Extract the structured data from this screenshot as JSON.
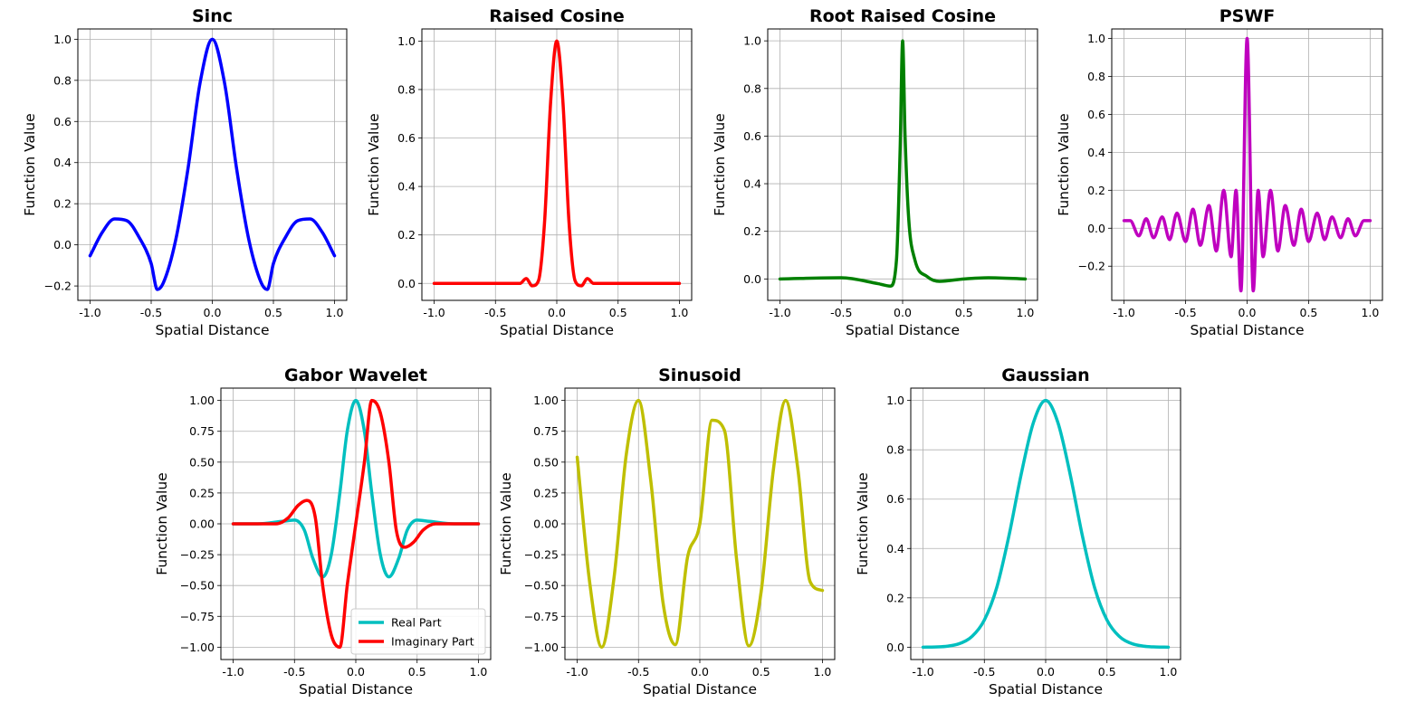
{
  "chart_data": [
    {
      "type": "line",
      "title": "Sinc",
      "xlabel": "Spatial Distance",
      "ylabel": "Function Value",
      "xlim": [
        -1.1,
        1.1
      ],
      "ylim": [
        -0.27,
        1.05
      ],
      "xticks": [
        -1.0,
        -0.5,
        0.0,
        0.5,
        1.0
      ],
      "xtick_labels": [
        "-1.0",
        "-0.5",
        "0.0",
        "0.5",
        "1.0"
      ],
      "yticks": [
        -0.2,
        0.0,
        0.2,
        0.4,
        0.6,
        0.8,
        1.0
      ],
      "ytick_labels": [
        "−0.2",
        "0.0",
        "0.2",
        "0.4",
        "0.6",
        "0.8",
        "1.0"
      ],
      "grid": true,
      "series": [
        {
          "name": "Sinc",
          "color": "#0000ff",
          "x": [
            -1.0,
            -0.9,
            -0.8,
            -0.7,
            -0.6,
            -0.5,
            -0.45,
            -0.4,
            -0.3,
            -0.2,
            -0.1,
            0.0,
            0.1,
            0.2,
            0.3,
            0.4,
            0.45,
            0.5,
            0.6,
            0.7,
            0.8,
            0.9,
            1.0
          ],
          "y": [
            -0.053,
            0.061,
            0.126,
            0.118,
            0.038,
            -0.091,
            -0.217,
            -0.184,
            0.022,
            0.366,
            0.788,
            1.0,
            0.788,
            0.366,
            0.022,
            -0.184,
            -0.217,
            -0.091,
            0.038,
            0.118,
            0.126,
            0.061,
            -0.053
          ]
        }
      ]
    },
    {
      "type": "line",
      "title": "Raised Cosine",
      "xlabel": "Spatial Distance",
      "ylabel": "Function Value",
      "xlim": [
        -1.1,
        1.1
      ],
      "ylim": [
        -0.07,
        1.05
      ],
      "xticks": [
        -1.0,
        -0.5,
        0.0,
        0.5,
        1.0
      ],
      "xtick_labels": [
        "-1.0",
        "-0.5",
        "0.0",
        "0.5",
        "1.0"
      ],
      "yticks": [
        0.0,
        0.2,
        0.4,
        0.6,
        0.8,
        1.0
      ],
      "ytick_labels": [
        "0.0",
        "0.2",
        "0.4",
        "0.6",
        "0.8",
        "1.0"
      ],
      "grid": true,
      "series": [
        {
          "name": "Raised Cosine",
          "color": "#ff0000",
          "x": [
            -1.0,
            -0.5,
            -0.3,
            -0.25,
            -0.2,
            -0.15,
            -0.1,
            -0.05,
            0.0,
            0.05,
            0.1,
            0.15,
            0.2,
            0.25,
            0.3,
            0.5,
            1.0
          ],
          "y": [
            0.0,
            0.0,
            0.0,
            0.02,
            -0.01,
            0.01,
            0.25,
            0.75,
            1.0,
            0.75,
            0.25,
            0.01,
            -0.01,
            0.02,
            0.0,
            0.0,
            0.0
          ]
        }
      ]
    },
    {
      "type": "line",
      "title": "Root Raised Cosine",
      "xlabel": "Spatial Distance",
      "ylabel": "Function Value",
      "xlim": [
        -1.1,
        1.1
      ],
      "ylim": [
        -0.09,
        1.05
      ],
      "xticks": [
        -1.0,
        -0.5,
        0.0,
        0.5,
        1.0
      ],
      "xtick_labels": [
        "-1.0",
        "-0.5",
        "0.0",
        "0.5",
        "1.0"
      ],
      "yticks": [
        0.0,
        0.2,
        0.4,
        0.6,
        0.8,
        1.0
      ],
      "ytick_labels": [
        "0.0",
        "0.2",
        "0.4",
        "0.6",
        "0.8",
        "1.0"
      ],
      "grid": true,
      "series": [
        {
          "name": "Root Raised Cosine",
          "color": "#008000",
          "x": [
            -1.0,
            -0.5,
            -0.2,
            -0.1,
            -0.05,
            -0.02,
            0.0,
            0.02,
            0.05,
            0.1,
            0.2,
            0.3,
            0.5,
            0.7,
            1.0
          ],
          "y": [
            0.0,
            0.005,
            -0.02,
            -0.03,
            0.08,
            0.55,
            1.0,
            0.6,
            0.25,
            0.08,
            0.01,
            -0.01,
            0.0,
            0.005,
            0.0
          ]
        }
      ]
    },
    {
      "type": "line",
      "title": "PSWF",
      "xlabel": "Spatial Distance",
      "ylabel": "Function Value",
      "xlim": [
        -1.1,
        1.1
      ],
      "ylim": [
        -0.38,
        1.05
      ],
      "xticks": [
        -1.0,
        -0.5,
        0.0,
        0.5,
        1.0
      ],
      "xtick_labels": [
        "-1.0",
        "-0.5",
        "0.0",
        "0.5",
        "1.0"
      ],
      "yticks": [
        -0.2,
        0.0,
        0.2,
        0.4,
        0.6,
        0.8,
        1.0
      ],
      "ytick_labels": [
        "−0.2",
        "0.0",
        "0.2",
        "0.4",
        "0.6",
        "0.8",
        "1.0"
      ],
      "grid": true,
      "series": [
        {
          "name": "PSWF",
          "color": "#bf00bf",
          "x": [
            -1.0,
            -0.95,
            -0.88,
            -0.82,
            -0.76,
            -0.69,
            -0.63,
            -0.57,
            -0.5,
            -0.44,
            -0.38,
            -0.31,
            -0.25,
            -0.19,
            -0.13,
            -0.09,
            -0.05,
            0.0,
            0.05,
            0.09,
            0.13,
            0.19,
            0.25,
            0.31,
            0.38,
            0.44,
            0.5,
            0.57,
            0.63,
            0.69,
            0.76,
            0.82,
            0.88,
            0.95,
            1.0
          ],
          "y": [
            0.04,
            0.04,
            -0.04,
            0.05,
            -0.05,
            0.06,
            -0.06,
            0.08,
            -0.07,
            0.1,
            -0.09,
            0.12,
            -0.12,
            0.2,
            -0.15,
            0.2,
            -0.33,
            1.0,
            -0.33,
            0.2,
            -0.15,
            0.2,
            -0.12,
            0.12,
            -0.09,
            0.1,
            -0.07,
            0.08,
            -0.06,
            0.06,
            -0.05,
            0.05,
            -0.04,
            0.04,
            0.04
          ]
        }
      ]
    },
    {
      "type": "line",
      "title": "Gabor Wavelet",
      "xlabel": "Spatial Distance",
      "ylabel": "Function Value",
      "xlim": [
        -1.1,
        1.1
      ],
      "ylim": [
        -1.1,
        1.1
      ],
      "xticks": [
        -1.0,
        -0.5,
        0.0,
        0.5,
        1.0
      ],
      "xtick_labels": [
        "-1.0",
        "-0.5",
        "0.0",
        "0.5",
        "1.0"
      ],
      "yticks": [
        -1.0,
        -0.75,
        -0.5,
        -0.25,
        0.0,
        0.25,
        0.5,
        0.75,
        1.0
      ],
      "ytick_labels": [
        "−1.00",
        "−0.75",
        "−0.50",
        "−0.25",
        "0.00",
        "0.25",
        "0.50",
        "0.75",
        "1.00"
      ],
      "grid": true,
      "legend": "lower right",
      "series": [
        {
          "name": "Real Part",
          "color": "#00bfbf",
          "x": [
            -1.0,
            -0.8,
            -0.6,
            -0.5,
            -0.42,
            -0.35,
            -0.27,
            -0.2,
            -0.13,
            -0.07,
            0.0,
            0.07,
            0.13,
            0.2,
            0.27,
            0.35,
            0.42,
            0.5,
            0.6,
            0.8,
            1.0
          ],
          "y": [
            0.0,
            0.0,
            0.02,
            0.03,
            -0.05,
            -0.28,
            -0.43,
            -0.25,
            0.25,
            0.75,
            1.0,
            0.75,
            0.25,
            -0.25,
            -0.43,
            -0.28,
            -0.05,
            0.03,
            0.02,
            0.0,
            0.0
          ]
        },
        {
          "name": "Imaginary Part",
          "color": "#ff0000",
          "x": [
            -1.0,
            -0.8,
            -0.65,
            -0.55,
            -0.47,
            -0.4,
            -0.33,
            -0.27,
            -0.2,
            -0.13,
            -0.07,
            0.0,
            0.07,
            0.13,
            0.2,
            0.27,
            0.33,
            0.4,
            0.47,
            0.55,
            0.65,
            0.8,
            1.0
          ],
          "y": [
            0.0,
            0.0,
            0.0,
            0.05,
            0.15,
            0.19,
            0.05,
            -0.5,
            -0.9,
            -1.0,
            -0.5,
            0.0,
            0.5,
            1.0,
            0.9,
            0.5,
            -0.05,
            -0.19,
            -0.15,
            -0.05,
            0.0,
            0.0,
            0.0
          ]
        }
      ]
    },
    {
      "type": "line",
      "title": "Sinusoid",
      "xlabel": "Spatial Distance",
      "ylabel": "Function Value",
      "xlim": [
        -1.1,
        1.1
      ],
      "ylim": [
        -1.1,
        1.1
      ],
      "xticks": [
        -1.0,
        -0.5,
        0.0,
        0.5,
        1.0
      ],
      "xtick_labels": [
        "-1.0",
        "-0.5",
        "0.0",
        "0.5",
        "1.0"
      ],
      "yticks": [
        -1.0,
        -0.75,
        -0.5,
        -0.25,
        0.0,
        0.25,
        0.5,
        0.75,
        1.0
      ],
      "ytick_labels": [
        "−1.00",
        "−0.75",
        "−0.50",
        "−0.25",
        "0.00",
        "0.25",
        "0.50",
        "0.75",
        "1.00"
      ],
      "grid": true,
      "series": [
        {
          "name": "Sinusoid",
          "color": "#bfbf00",
          "x": [
            -1.0,
            -0.9,
            -0.8,
            -0.7,
            -0.6,
            -0.5,
            -0.4,
            -0.3,
            -0.2,
            -0.1,
            0.0,
            0.1,
            0.2,
            0.3,
            0.4,
            0.5,
            0.6,
            0.7,
            0.8,
            0.9,
            1.0
          ],
          "y": [
            0.54,
            -0.46,
            -1.0,
            -0.44,
            0.56,
            1.0,
            0.35,
            -0.64,
            -0.98,
            -0.27,
            0.0,
            0.84,
            0.76,
            -0.29,
            -0.99,
            -0.55,
            0.44,
            1.0,
            0.44,
            -0.47,
            -0.54
          ]
        }
      ]
    },
    {
      "type": "line",
      "title": "Gaussian",
      "xlabel": "Spatial Distance",
      "ylabel": "Function Value",
      "xlim": [
        -1.1,
        1.1
      ],
      "ylim": [
        -0.05,
        1.05
      ],
      "xticks": [
        -1.0,
        -0.5,
        0.0,
        0.5,
        1.0
      ],
      "xtick_labels": [
        "-1.0",
        "-0.5",
        "0.0",
        "0.5",
        "1.0"
      ],
      "yticks": [
        0.0,
        0.2,
        0.4,
        0.6,
        0.8,
        1.0
      ],
      "ytick_labels": [
        "0.0",
        "0.2",
        "0.4",
        "0.6",
        "0.8",
        "1.0"
      ],
      "grid": true,
      "series": [
        {
          "name": "Gaussian",
          "color": "#00bfbf",
          "x": [
            -1.0,
            -0.9,
            -0.8,
            -0.7,
            -0.6,
            -0.5,
            -0.4,
            -0.3,
            -0.2,
            -0.1,
            0.0,
            0.1,
            0.2,
            0.3,
            0.4,
            0.5,
            0.6,
            0.7,
            0.8,
            0.9,
            1.0
          ],
          "y": [
            0.0,
            0.001,
            0.004,
            0.015,
            0.044,
            0.11,
            0.24,
            0.45,
            0.7,
            0.91,
            1.0,
            0.91,
            0.7,
            0.45,
            0.24,
            0.11,
            0.044,
            0.015,
            0.004,
            0.001,
            0.0
          ]
        }
      ]
    }
  ]
}
